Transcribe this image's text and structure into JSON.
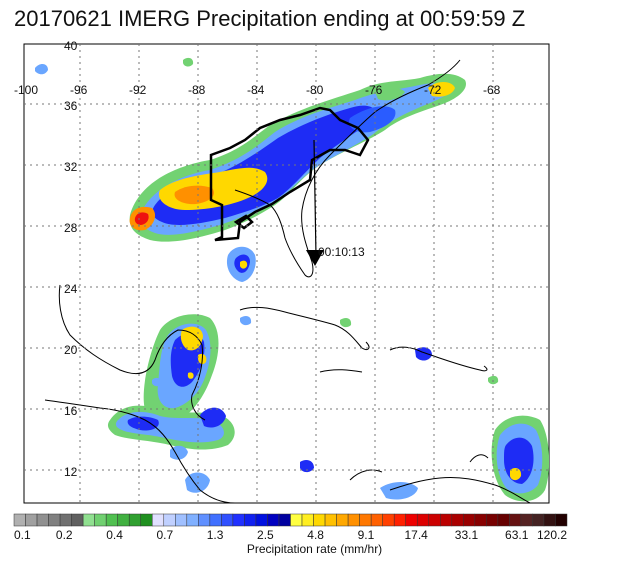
{
  "title": "20170621 IMERG Precipitation ending at 00:59:59 Z",
  "lon_labels": [
    "-100",
    "-96",
    "-92",
    "-88",
    "-84",
    "-80",
    "-76",
    "-72",
    "-68"
  ],
  "lat_labels": [
    "40",
    "36",
    "32",
    "28",
    "24",
    "20",
    "16",
    "12"
  ],
  "track_marker_label": "00:10:13",
  "colorbar": {
    "title": "Precipitation rate (mm/hr)",
    "tick_labels": [
      "0.1",
      "0.2",
      "0.4",
      "0.7",
      "1.3",
      "2.5",
      "4.8",
      "9.1",
      "17.4",
      "33.1",
      "63.1",
      "120.2"
    ],
    "colors": [
      "#b0b0b0",
      "#a0a0a0",
      "#909090",
      "#808080",
      "#707070",
      "#606060",
      "#90e090",
      "#70d070",
      "#50c050",
      "#40b040",
      "#30a030",
      "#209020",
      "#e0e0ff",
      "#c0d0ff",
      "#a0c0ff",
      "#80b0ff",
      "#6090ff",
      "#4070ff",
      "#3050ff",
      "#2030ff",
      "#1020f0",
      "#0010e0",
      "#0000c0",
      "#0000a0",
      "#ffff40",
      "#ffee20",
      "#ffd800",
      "#ffc000",
      "#ffa800",
      "#ff9000",
      "#ff7800",
      "#ff6000",
      "#ff4000",
      "#ff2000",
      "#ee0000",
      "#dd0000",
      "#cc0000",
      "#bb0000",
      "#aa0000",
      "#990000",
      "#880000",
      "#770000",
      "#660000",
      "#661111",
      "#552222",
      "#442222",
      "#331111",
      "#220000"
    ]
  }
}
